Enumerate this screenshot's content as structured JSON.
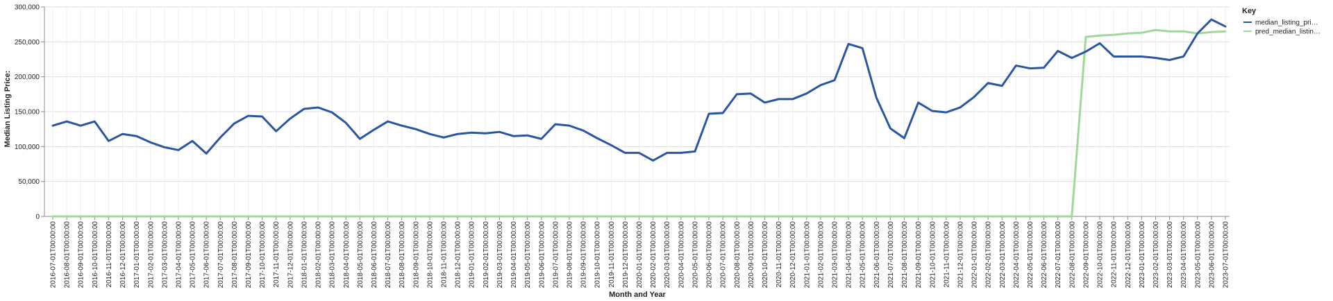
{
  "chart_data": {
    "type": "line",
    "xlabel": "Month and Year",
    "ylabel": "Median Listing Price:",
    "ylim": [
      0,
      300000
    ],
    "y_ticks": [
      0,
      50000,
      100000,
      150000,
      200000,
      250000,
      300000
    ],
    "y_tick_labels": [
      "0",
      "50,000",
      "100,000",
      "150,000",
      "200,000",
      "250,000",
      "300,000"
    ],
    "grid": true,
    "legend": {
      "title": "Key",
      "placement": "top-right",
      "entries": [
        "median_listing_pri…",
        "pred_median_listin…"
      ]
    },
    "x": [
      "2016-07-01T00:00:00",
      "2016-08-01T00:00:00",
      "2016-09-01T00:00:00",
      "2016-10-01T00:00:00",
      "2016-11-01T00:00:00",
      "2016-12-01T00:00:00",
      "2017-01-01T00:00:00",
      "2017-02-01T00:00:00",
      "2017-03-01T00:00:00",
      "2017-04-01T00:00:00",
      "2017-05-01T00:00:00",
      "2017-06-01T00:00:00",
      "2017-07-01T00:00:00",
      "2017-08-01T00:00:00",
      "2017-09-01T00:00:00",
      "2017-10-01T00:00:00",
      "2017-11-01T00:00:00",
      "2017-12-01T00:00:00",
      "2018-01-01T00:00:00",
      "2018-02-01T00:00:00",
      "2018-03-01T00:00:00",
      "2018-04-01T00:00:00",
      "2018-05-01T00:00:00",
      "2018-06-01T00:00:00",
      "2018-07-01T00:00:00",
      "2018-08-01T00:00:00",
      "2018-09-01T00:00:00",
      "2018-10-01T00:00:00",
      "2018-11-01T00:00:00",
      "2018-12-01T00:00:00",
      "2019-01-01T00:00:00",
      "2019-02-01T00:00:00",
      "2019-03-01T00:00:00",
      "2019-04-01T00:00:00",
      "2019-05-01T00:00:00",
      "2019-06-01T00:00:00",
      "2019-07-01T00:00:00",
      "2019-08-01T00:00:00",
      "2019-09-01T00:00:00",
      "2019-10-01T00:00:00",
      "2019-11-01T00:00:00",
      "2019-12-01T00:00:00",
      "2020-01-01T00:00:00",
      "2020-02-01T00:00:00",
      "2020-03-01T00:00:00",
      "2020-04-01T00:00:00",
      "2020-05-01T00:00:00",
      "2020-06-01T00:00:00",
      "2020-07-01T00:00:00",
      "2020-08-01T00:00:00",
      "2020-09-01T00:00:00",
      "2020-10-01T00:00:00",
      "2020-11-01T00:00:00",
      "2020-12-01T00:00:00",
      "2021-01-01T00:00:00",
      "2021-02-01T00:00:00",
      "2021-03-01T00:00:00",
      "2021-04-01T00:00:00",
      "2021-05-01T00:00:00",
      "2021-06-01T00:00:00",
      "2021-07-01T00:00:00",
      "2021-08-01T00:00:00",
      "2021-09-01T00:00:00",
      "2021-10-01T00:00:00",
      "2021-11-01T00:00:00",
      "2021-12-01T00:00:00",
      "2022-01-01T00:00:00",
      "2022-02-01T00:00:00",
      "2022-03-01T00:00:00",
      "2022-04-01T00:00:00",
      "2022-05-01T00:00:00",
      "2022-06-01T00:00:00",
      "2022-07-01T00:00:00",
      "2022-08-01T00:00:00",
      "2022-09-01T00:00:00",
      "2022-10-01T00:00:00",
      "2022-11-01T00:00:00",
      "2022-12-01T00:00:00",
      "2023-01-01T00:00:00",
      "2023-02-01T00:00:00",
      "2023-03-01T00:00:00",
      "2023-04-01T00:00:00",
      "2023-05-01T00:00:00",
      "2023-06-01T00:00:00",
      "2023-07-01T00:00:00"
    ],
    "series": [
      {
        "name": "median_listing_pri…",
        "color": "#2a56a0",
        "values": [
          130000,
          136000,
          130000,
          136000,
          108000,
          118000,
          115000,
          106000,
          99000,
          95000,
          108000,
          90000,
          113000,
          133000,
          144000,
          143000,
          122000,
          140000,
          154000,
          156000,
          149000,
          134000,
          111000,
          124000,
          136000,
          130000,
          125000,
          118000,
          113000,
          118000,
          120000,
          119000,
          121000,
          115000,
          116000,
          111000,
          132000,
          130000,
          123000,
          112000,
          102000,
          91000,
          91000,
          80000,
          91000,
          91000,
          93000,
          147000,
          148000,
          175000,
          176000,
          163000,
          168000,
          168000,
          176000,
          188000,
          195000,
          247000,
          241000,
          170000,
          126000,
          112000,
          163000,
          151000,
          149000,
          156000,
          171000,
          191000,
          187000,
          216000,
          212000,
          213000,
          237000,
          227000,
          236000,
          248000,
          229000,
          229000,
          229000,
          227000,
          224000,
          229000,
          262000,
          282000,
          272000
        ]
      },
      {
        "name": "pred_median_listin…",
        "color": "#9fd89a",
        "values": [
          0,
          0,
          0,
          0,
          0,
          0,
          0,
          0,
          0,
          0,
          0,
          0,
          0,
          0,
          0,
          0,
          0,
          0,
          0,
          0,
          0,
          0,
          0,
          0,
          0,
          0,
          0,
          0,
          0,
          0,
          0,
          0,
          0,
          0,
          0,
          0,
          0,
          0,
          0,
          0,
          0,
          0,
          0,
          0,
          0,
          0,
          0,
          0,
          0,
          0,
          0,
          0,
          0,
          0,
          0,
          0,
          0,
          0,
          0,
          0,
          0,
          0,
          0,
          0,
          0,
          0,
          0,
          0,
          0,
          0,
          0,
          0,
          0,
          0,
          257000,
          259000,
          260000,
          262000,
          263000,
          267000,
          265000,
          265000,
          262000,
          264000,
          265000
        ]
      }
    ]
  }
}
